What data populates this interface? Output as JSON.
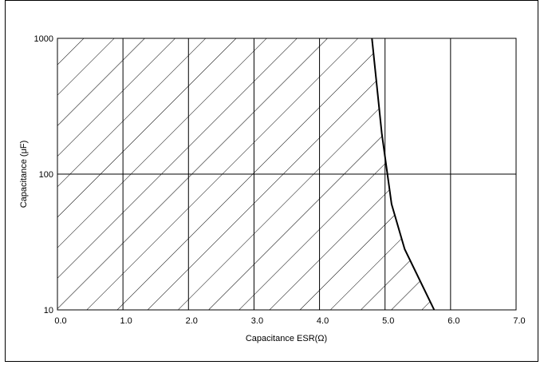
{
  "chart_data": {
    "type": "area",
    "title": "",
    "xlabel": "Capacitance ESR(Ω)",
    "ylabel": "Capacitance (μF)",
    "xlim": [
      0.0,
      7.0
    ],
    "ylim": [
      10,
      1000
    ],
    "y_scale": "log",
    "x_ticks": [
      "0.0",
      "1.0",
      "2.0",
      "3.0",
      "4.0",
      "5.0",
      "6.0",
      "7.0"
    ],
    "x_tick_values": [
      0,
      1,
      2,
      3,
      4,
      5,
      6,
      7
    ],
    "y_ticks": [
      "10",
      "100",
      "1000"
    ],
    "y_tick_values": [
      10,
      100,
      1000
    ],
    "grid": true,
    "fill": "hatched",
    "boundary": {
      "x": [
        4.8,
        4.95,
        5.1,
        5.3,
        5.75
      ],
      "y": [
        1000,
        200,
        60,
        28,
        10
      ]
    }
  }
}
